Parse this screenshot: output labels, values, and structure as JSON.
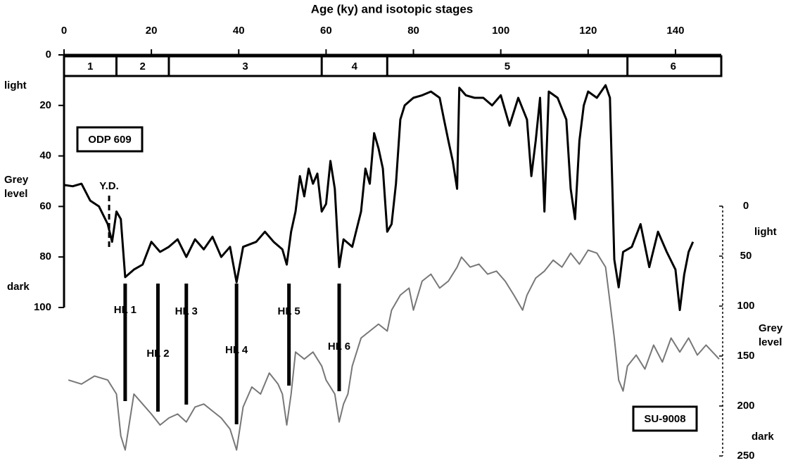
{
  "chart_data": {
    "type": "line",
    "title": "Age (ky) and isotopic stages",
    "xlim": [
      0,
      150
    ],
    "xticks": [
      0,
      20,
      40,
      60,
      80,
      100,
      120,
      140
    ],
    "ylim": [
      0,
      100
    ],
    "yticks": [
      0,
      20,
      40,
      60,
      80,
      100
    ],
    "y2lim": [
      0,
      250
    ],
    "y2ticks": [
      0,
      50,
      100,
      150,
      200,
      250
    ],
    "y_label": [
      "Grey",
      "level"
    ],
    "y_top_label": "light",
    "y_bottom_label": "dark",
    "y2_label": [
      "Grey",
      "level"
    ],
    "y2_top_label": "light",
    "y2_bottom_label": "dark",
    "stages": [
      {
        "label": "1",
        "start": 0,
        "end": 12
      },
      {
        "label": "2",
        "start": 12,
        "end": 24
      },
      {
        "label": "3",
        "start": 24,
        "end": 59
      },
      {
        "label": "4",
        "start": 59,
        "end": 74
      },
      {
        "label": "5",
        "start": 74,
        "end": 129
      },
      {
        "label": "6",
        "start": 129,
        "end": 150
      }
    ],
    "annotation": {
      "label": "Y.D.",
      "age": 10
    },
    "events": [
      {
        "label": "HL 1",
        "age": 14
      },
      {
        "label": "HL 2",
        "age": 21.5
      },
      {
        "label": "HL 3",
        "age": 28
      },
      {
        "label": "HL 4",
        "age": 39.5
      },
      {
        "label": "HL 5",
        "age": 51.5
      },
      {
        "label": "HL 6",
        "age": 63
      }
    ],
    "series": [
      {
        "name": "ODP 609",
        "color": "#000000",
        "x": [
          0,
          2,
          4,
          6,
          8,
          10,
          11,
          12,
          13,
          14,
          16,
          18,
          20,
          22,
          24,
          26,
          28,
          30,
          32,
          34,
          36,
          38,
          39.5,
          41,
          44,
          46,
          48,
          50,
          51,
          52,
          53,
          54,
          55,
          56,
          57,
          58,
          59,
          60,
          61,
          62,
          63,
          64,
          66,
          68,
          69,
          70,
          71,
          72,
          73,
          74,
          75,
          76,
          77,
          78,
          80,
          82,
          84,
          86,
          87,
          88,
          89,
          90,
          90.5,
          92,
          94,
          96,
          98,
          100,
          102,
          104,
          106,
          107,
          108,
          109,
          110,
          111,
          113,
          115,
          116,
          117,
          118,
          119,
          120,
          122,
          124,
          125,
          126,
          127,
          128,
          130,
          132,
          134,
          136,
          138,
          140,
          141,
          142,
          143,
          144
        ],
        "values": [
          51.5,
          52,
          51,
          57.7,
          60,
          67,
          74,
          62,
          65,
          88,
          85,
          83,
          74,
          78,
          76,
          73,
          80,
          73,
          77,
          72,
          80,
          76,
          90,
          76,
          74,
          70,
          74,
          77,
          83,
          70,
          62,
          48,
          56,
          45,
          51,
          47,
          62,
          59,
          42,
          53,
          84,
          73,
          76,
          62,
          45,
          51,
          31,
          37,
          45,
          70,
          67,
          51,
          25.6,
          20,
          17,
          16,
          14.5,
          17,
          25.6,
          34,
          42,
          53,
          13,
          16,
          17,
          17,
          20,
          16,
          28,
          17,
          25.6,
          48,
          34,
          17,
          62,
          14.5,
          17,
          25.6,
          53,
          65,
          34,
          20,
          14.5,
          17,
          12,
          17,
          81,
          92,
          78,
          76,
          67,
          84,
          70,
          78,
          85,
          101,
          87,
          78,
          74
        ]
      },
      {
        "name": "SU-9008",
        "color": "#777777",
        "axis": "y2",
        "x": [
          1,
          4,
          7,
          10,
          12,
          13,
          14,
          15,
          16,
          18,
          20,
          22,
          24,
          26,
          28,
          30,
          32,
          34,
          36,
          38,
          39.5,
          41,
          43,
          45,
          47,
          49,
          50,
          51,
          52,
          53,
          55,
          57,
          59,
          60,
          62,
          63,
          64,
          65,
          66,
          68,
          70,
          72,
          74,
          75,
          77,
          79,
          80,
          82,
          84,
          86,
          88,
          90,
          91,
          93,
          95,
          97,
          99,
          101,
          103,
          105,
          106,
          108,
          110,
          112,
          114,
          116,
          118,
          120,
          122,
          124,
          125,
          126,
          127,
          128,
          129,
          131,
          133,
          135,
          137,
          139,
          141,
          143,
          145,
          147,
          150
        ],
        "values": [
          174,
          178,
          170,
          174,
          188,
          230,
          244,
          216,
          188,
          198,
          208,
          219,
          212,
          208,
          216,
          201,
          198,
          205,
          212,
          223,
          244,
          201,
          181,
          188,
          167,
          178,
          188,
          219,
          188,
          146,
          153,
          146,
          160,
          174,
          188,
          216,
          198,
          188,
          160,
          132,
          125,
          118,
          125,
          104,
          89,
          82,
          104,
          75,
          68,
          82,
          75,
          61,
          51,
          61,
          58,
          68,
          65,
          75,
          89,
          104,
          89,
          72,
          65,
          54,
          61,
          47,
          58,
          44,
          47,
          61,
          96,
          132,
          174,
          185,
          160,
          149,
          163,
          139,
          156,
          132,
          146,
          132,
          149,
          139,
          153
        ]
      }
    ]
  }
}
